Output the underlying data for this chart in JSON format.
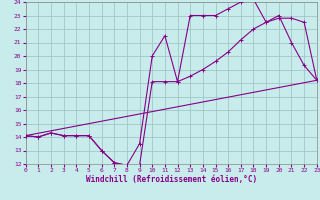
{
  "xlabel": "Windchill (Refroidissement éolien,°C)",
  "background_color": "#c8ecec",
  "grid_color": "#a0c8c8",
  "line_color": "#880088",
  "xlim": [
    0,
    23
  ],
  "ylim": [
    12,
    24
  ],
  "yticks": [
    12,
    13,
    14,
    15,
    16,
    17,
    18,
    19,
    20,
    21,
    22,
    23,
    24
  ],
  "xticks": [
    0,
    1,
    2,
    3,
    4,
    5,
    6,
    7,
    8,
    9,
    10,
    11,
    12,
    13,
    14,
    15,
    16,
    17,
    18,
    19,
    20,
    21,
    22,
    23
  ],
  "curve1_x": [
    0,
    1,
    2,
    3,
    4,
    5,
    6,
    7,
    8,
    9,
    10,
    11,
    12,
    13,
    14,
    15,
    16,
    17,
    18,
    19,
    20,
    21,
    22,
    23
  ],
  "curve1_y": [
    14.1,
    14.0,
    14.3,
    14.1,
    14.1,
    14.1,
    13.0,
    12.1,
    11.9,
    13.5,
    20.0,
    21.5,
    18.1,
    23.0,
    23.0,
    23.0,
    23.5,
    24.0,
    24.2,
    22.5,
    23.0,
    21.0,
    19.3,
    18.2
  ],
  "curve2_x": [
    0,
    1,
    2,
    3,
    4,
    5,
    6,
    7,
    8,
    9,
    10,
    11,
    12,
    13,
    14,
    15,
    16,
    17,
    18,
    19,
    20,
    21,
    22,
    23
  ],
  "curve2_y": [
    14.1,
    14.0,
    14.3,
    14.1,
    14.1,
    14.1,
    13.0,
    12.1,
    11.9,
    11.9,
    18.1,
    18.1,
    18.1,
    18.5,
    19.0,
    19.6,
    20.3,
    21.2,
    22.0,
    22.5,
    22.8,
    22.8,
    22.5,
    18.2
  ],
  "curve3_x": [
    0,
    23
  ],
  "curve3_y": [
    14.1,
    18.2
  ]
}
